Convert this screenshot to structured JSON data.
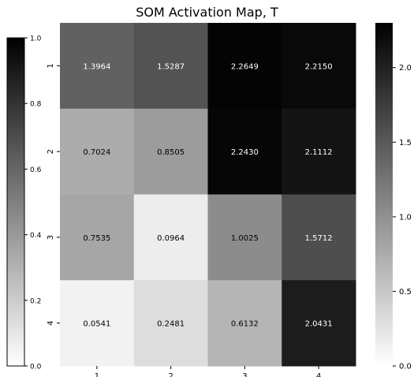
{
  "chart_data": {
    "type": "heatmap",
    "title": "SOM Activation Map, T",
    "x_categories": [
      "1",
      "2",
      "3",
      "4"
    ],
    "y_categories": [
      "1",
      "2",
      "3",
      "4"
    ],
    "values": [
      [
        1.3964,
        1.5287,
        2.2649,
        2.215
      ],
      [
        0.7024,
        0.8505,
        2.243,
        2.1112
      ],
      [
        0.7535,
        0.0964,
        1.0025,
        1.5712
      ],
      [
        0.0541,
        0.2481,
        0.6132,
        2.0431
      ]
    ],
    "value_labels": [
      [
        "1.3964",
        "1.5287",
        "2.2649",
        "2.2150"
      ],
      [
        "0.7024",
        "0.8505",
        "2.2430",
        "2.1112"
      ],
      [
        "0.7535",
        "0.0964",
        "1.0025",
        "1.5712"
      ],
      [
        "0.0541",
        "0.2481",
        "0.6132",
        "2.0431"
      ]
    ],
    "colormap": "Greys",
    "colorbar_right": {
      "range": [
        0,
        2.3
      ],
      "ticks": [
        0.0,
        0.5,
        1.0,
        1.5,
        2.0
      ],
      "tick_labels": [
        "0.0",
        "0.5",
        "1.0",
        "1.5",
        "2.0"
      ],
      "placement": "right"
    },
    "colorbar_left": {
      "range": [
        0,
        1
      ],
      "ticks": [
        0.0,
        0.2,
        0.4,
        0.6,
        0.8,
        1.0
      ],
      "tick_labels": [
        "0.0",
        "0.2",
        "0.4",
        "0.6",
        "0.8",
        "1.0"
      ],
      "placement": "left"
    },
    "grid": false,
    "colors": {
      "low": "#ffffff",
      "high": "#000000",
      "text_light": "#ffffff",
      "text_dark": "#000000"
    }
  }
}
